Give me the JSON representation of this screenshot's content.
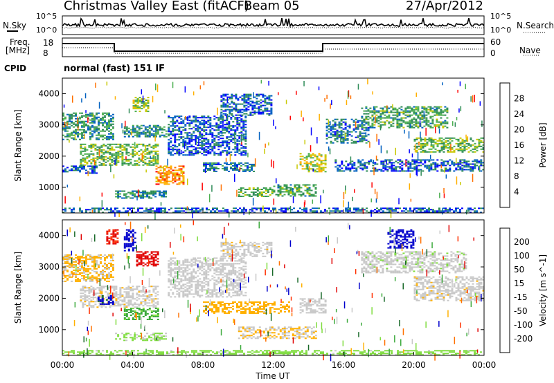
{
  "header": {
    "title_left": "Christmas Valley East (fitACF)",
    "title_beam": "Beam 05",
    "date": "27/Apr/2012"
  },
  "panels": {
    "nsky_label": "N.Sky",
    "nsearch_label": "N.Search",
    "nsky_ticks": [
      "10^5",
      "10^0"
    ],
    "nsearch_ticks": [
      "10^5",
      "10^0"
    ],
    "freq_label_1": "Freq.",
    "freq_label_2": "[MHz]",
    "freq_ticks": [
      "18",
      "8"
    ],
    "nave_label": "Nave",
    "nave_ticks": [
      "60",
      "0"
    ],
    "cpid_label": "CPID",
    "cpid_value": "normal (fast) 151 IF"
  },
  "axes": {
    "ylabel": "Slant Range [km]",
    "xlabel": "Time UT",
    "yticks": [
      "1000",
      "2000",
      "3000",
      "4000"
    ],
    "xticks": [
      "00:00",
      "04:00",
      "08:00",
      "12:00",
      "16:00",
      "20:00",
      "00:00"
    ]
  },
  "colorbars": {
    "power": {
      "label": "Power [dB]",
      "ticks": [
        "4",
        "8",
        "12",
        "16",
        "20",
        "24",
        "28"
      ],
      "colors": [
        "#0000ff",
        "#0060c0",
        "#2e8b57",
        "#4caf50",
        "#c8c800",
        "#ffb000",
        "#ff7000",
        "#ff0000"
      ]
    },
    "velocity": {
      "label": "Velocity [m s^-1]",
      "ticks": [
        "200",
        "100",
        "50",
        "15",
        "-15",
        "-50",
        "-100",
        "-200"
      ],
      "colors": [
        "#0000cc",
        "#1a6a2a",
        "#3caa3c",
        "#80dd40",
        "#c8c8c8",
        "#ffb000",
        "#ff7000",
        "#ff3000",
        "#e00000"
      ]
    }
  },
  "chart_data": [
    {
      "type": "heatmap",
      "name": "power",
      "xlabel": "Time UT",
      "ylabel": "Slant Range [km]",
      "xlim": [
        0,
        24
      ],
      "ylim": [
        180,
        4500
      ],
      "colorbar_label": "Power [dB]",
      "colorbar_range": [
        0,
        32
      ],
      "regions": [
        {
          "t0": 0.0,
          "t1": 3.0,
          "r0": 2500,
          "r1": 3400,
          "val": 10
        },
        {
          "t0": 0.0,
          "t1": 2.0,
          "r0": 1450,
          "r1": 1700,
          "val": 6
        },
        {
          "t0": 1.0,
          "t1": 5.5,
          "r0": 1700,
          "r1": 2400,
          "val": 14
        },
        {
          "t0": 3.5,
          "t1": 6.0,
          "r0": 2600,
          "r1": 3000,
          "val": 10
        },
        {
          "t0": 4.0,
          "t1": 5.0,
          "r0": 3400,
          "r1": 3900,
          "val": 16
        },
        {
          "t0": 5.3,
          "t1": 7.0,
          "r0": 1100,
          "r1": 1700,
          "val": 24
        },
        {
          "t0": 3.0,
          "t1": 6.0,
          "r0": 650,
          "r1": 900,
          "val": 10
        },
        {
          "t0": 6.0,
          "t1": 10.5,
          "r0": 2000,
          "r1": 3300,
          "val": 6
        },
        {
          "t0": 9.0,
          "t1": 12.0,
          "r0": 3300,
          "r1": 4000,
          "val": 6
        },
        {
          "t0": 8.0,
          "t1": 11.0,
          "r0": 1500,
          "r1": 1800,
          "val": 8
        },
        {
          "t0": 10.0,
          "t1": 12.0,
          "r0": 700,
          "r1": 1000,
          "val": 14
        },
        {
          "t0": 12.0,
          "t1": 14.5,
          "r0": 700,
          "r1": 1100,
          "val": 12
        },
        {
          "t0": 13.5,
          "t1": 15.0,
          "r0": 1500,
          "r1": 2100,
          "val": 18
        },
        {
          "t0": 15.0,
          "t1": 17.5,
          "r0": 2400,
          "r1": 3200,
          "val": 8
        },
        {
          "t0": 17.0,
          "t1": 22.0,
          "r0": 2900,
          "r1": 3600,
          "val": 12
        },
        {
          "t0": 20.0,
          "t1": 24.0,
          "r0": 2100,
          "r1": 2600,
          "val": 14
        },
        {
          "t0": 15.5,
          "t1": 24.0,
          "r0": 1500,
          "r1": 1900,
          "val": 6
        },
        {
          "t0": 0.0,
          "t1": 24.0,
          "r0": 180,
          "r1": 350,
          "val": 6
        }
      ]
    },
    {
      "type": "heatmap",
      "name": "velocity",
      "xlabel": "Time UT",
      "ylabel": "Slant Range [km]",
      "xlim": [
        0,
        24
      ],
      "ylim": [
        180,
        4500
      ],
      "colorbar_label": "Velocity [m s^-1]",
      "colorbar_range": [
        -200,
        200
      ],
      "regions": [
        {
          "t0": 0.0,
          "t1": 3.0,
          "r0": 2500,
          "r1": 3400,
          "val": -30
        },
        {
          "t0": 2.5,
          "t1": 3.2,
          "r0": 3700,
          "r1": 4200,
          "val": -160
        },
        {
          "t0": 3.5,
          "t1": 4.2,
          "r0": 3500,
          "r1": 4200,
          "val": 180
        },
        {
          "t0": 4.2,
          "t1": 5.5,
          "r0": 3000,
          "r1": 3500,
          "val": -180
        },
        {
          "t0": 1.0,
          "t1": 5.5,
          "r0": 1700,
          "r1": 2400,
          "val": -5
        },
        {
          "t0": 2.0,
          "t1": 3.0,
          "r0": 1800,
          "r1": 2100,
          "val": 170
        },
        {
          "t0": 3.5,
          "t1": 5.5,
          "r0": 1300,
          "r1": 1700,
          "val": 80
        },
        {
          "t0": 3.0,
          "t1": 6.0,
          "r0": 650,
          "r1": 900,
          "val": 30
        },
        {
          "t0": 6.0,
          "t1": 10.5,
          "r0": 2000,
          "r1": 3300,
          "val": 0
        },
        {
          "t0": 9.0,
          "t1": 12.0,
          "r0": 3300,
          "r1": 3800,
          "val": -5
        },
        {
          "t0": 8.0,
          "t1": 13.0,
          "r0": 1500,
          "r1": 1900,
          "val": -40
        },
        {
          "t0": 10.0,
          "t1": 14.5,
          "r0": 700,
          "r1": 1100,
          "val": -20
        },
        {
          "t0": 13.5,
          "t1": 15.0,
          "r0": 1500,
          "r1": 2000,
          "val": 0
        },
        {
          "t0": 17.0,
          "t1": 23.0,
          "r0": 2800,
          "r1": 3500,
          "val": 5
        },
        {
          "t0": 18.5,
          "t1": 20.0,
          "r0": 3600,
          "r1": 4200,
          "val": 180
        },
        {
          "t0": 20.0,
          "t1": 24.0,
          "r0": 1900,
          "r1": 2700,
          "val": -5
        },
        {
          "t0": 0.0,
          "t1": 24.0,
          "r0": 180,
          "r1": 350,
          "val": 40
        }
      ]
    }
  ]
}
